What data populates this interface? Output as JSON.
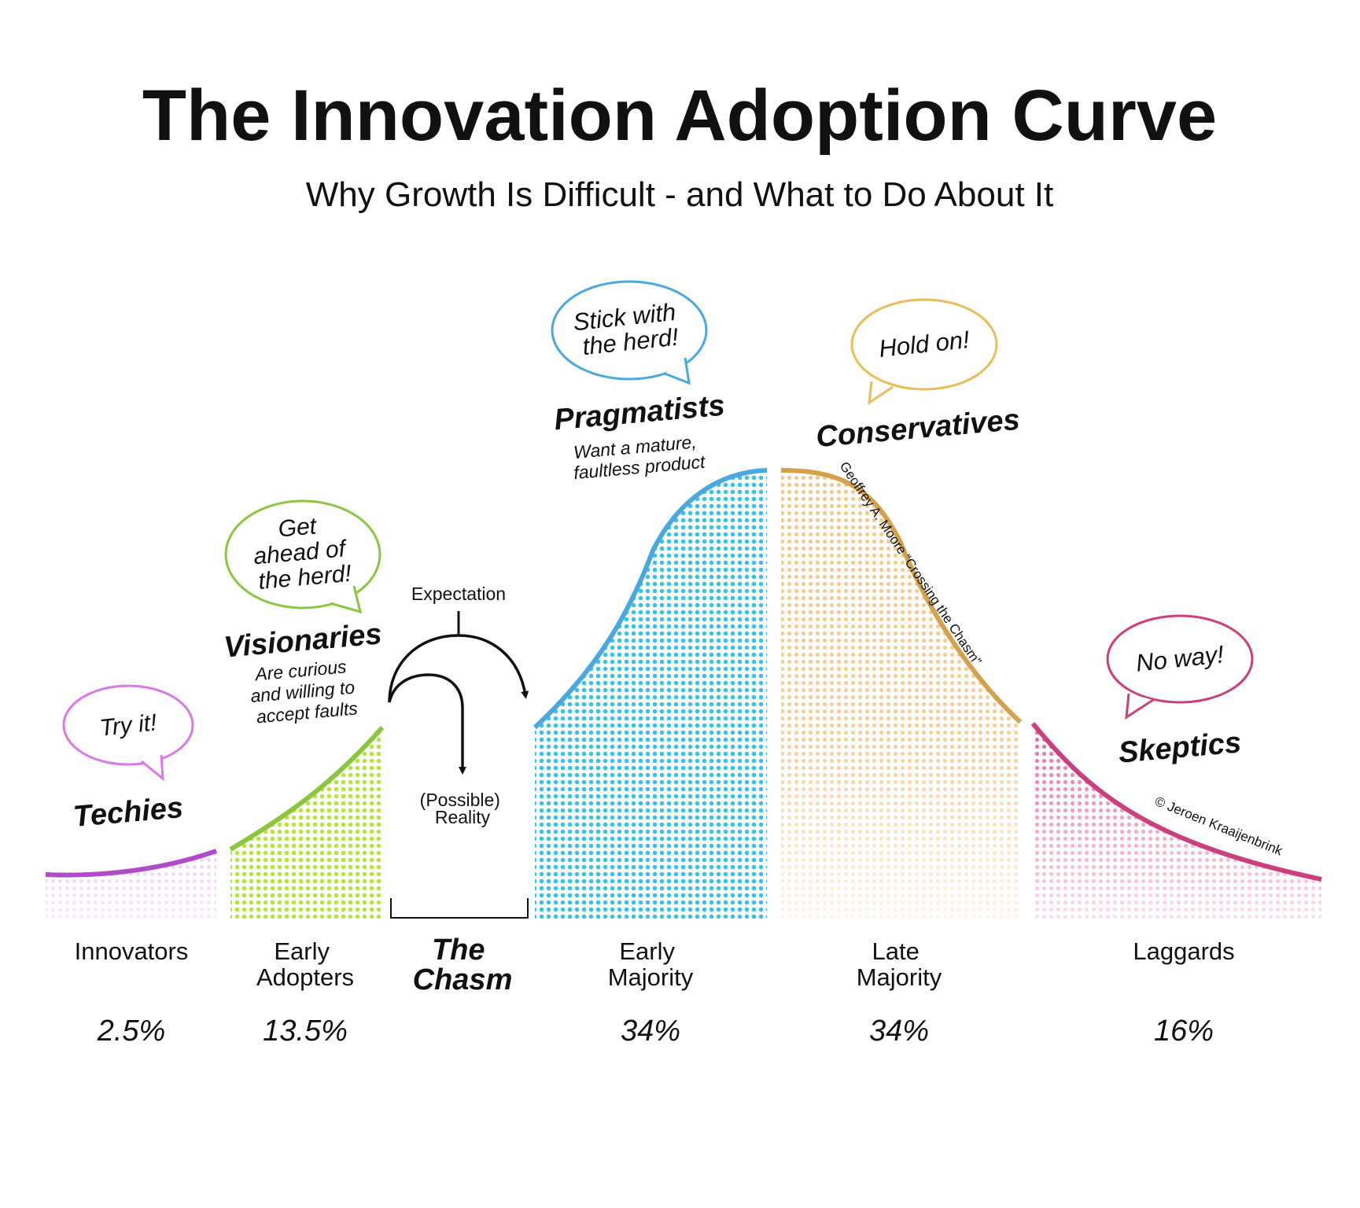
{
  "title": "The Innovation Adoption Curve",
  "subtitle": "Why Growth Is Difficult - and What to Do About It",
  "segments": [
    {
      "id": "innovators",
      "label_lines": [
        "Innovators"
      ],
      "share": "2.5%",
      "persona": "Techies",
      "bubble_lines": [
        "Try it!"
      ],
      "description_lines": [],
      "color": "#b04cc8"
    },
    {
      "id": "early-adopters",
      "label_lines": [
        "Early",
        "Adopters"
      ],
      "share": "13.5%",
      "persona": "Visionaries",
      "bubble_lines": [
        "Get",
        "ahead of",
        "the herd!"
      ],
      "description_lines": [
        "Are curious",
        "and willing to",
        "accept faults"
      ],
      "color": "#8cc63f"
    },
    {
      "id": "early-majority",
      "label_lines": [
        "Early",
        "Majority"
      ],
      "share": "34%",
      "persona": "Pragmatists",
      "bubble_lines": [
        "Stick with",
        "the herd!"
      ],
      "description_lines": [
        "Want a mature,",
        "faultless product"
      ],
      "color": "#4aa8e0"
    },
    {
      "id": "late-majority",
      "label_lines": [
        "Late",
        "Majority"
      ],
      "share": "34%",
      "persona": "Conservatives",
      "bubble_lines": [
        "Hold on!"
      ],
      "description_lines": [],
      "color": "#d4a24c"
    },
    {
      "id": "laggards",
      "label_lines": [
        "Laggards"
      ],
      "share": "16%",
      "persona": "Skeptics",
      "bubble_lines": [
        "No way!"
      ],
      "description_lines": [],
      "color": "#cc3f7f"
    }
  ],
  "chasm": {
    "label_lines": [
      "The",
      "Chasm"
    ],
    "expectation": "Expectation",
    "reality_lines": [
      "(Possible)",
      "Reality"
    ]
  },
  "source_credit": "Geoffrey A. Moore “Crossing the Chasm”",
  "copyright": "© Jeroen Kraaijenbrink"
}
